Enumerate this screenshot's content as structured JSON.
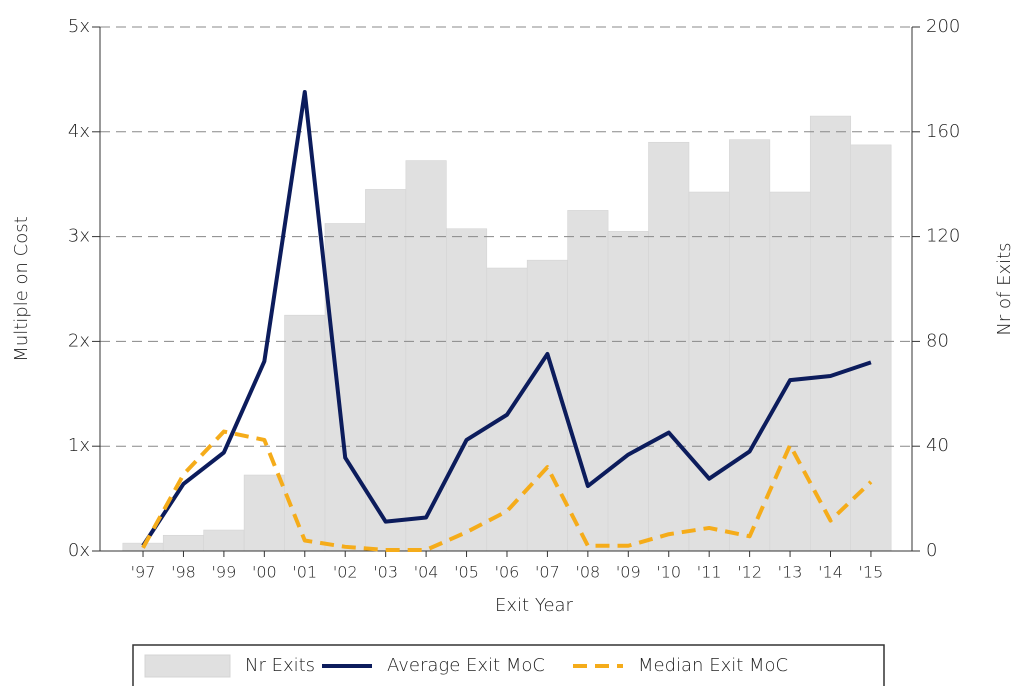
{
  "chart_data": {
    "type": "bar",
    "x_label": "Exit Year",
    "y_label": "Multiple on Cost",
    "y2_label": "Nr of Exits",
    "categories": [
      "'97",
      "'98",
      "'99",
      "'00",
      "'01",
      "'02",
      "'03",
      "'04",
      "'05",
      "'06",
      "'07",
      "'08",
      "'09",
      "'10",
      "'11",
      "'12",
      "'13",
      "'14",
      "'15"
    ],
    "series": [
      {
        "name": "Nr Exits",
        "type": "bar",
        "axis": "y2",
        "color": "#e0e0e0",
        "values": [
          3,
          6,
          8,
          29,
          90,
          125,
          138,
          149,
          123,
          108,
          111,
          130,
          122,
          156,
          137,
          157,
          137,
          166,
          155
        ]
      },
      {
        "name": "Average Exit MoC",
        "type": "line",
        "color": "#0c1c5c",
        "values": [
          0.05,
          0.64,
          0.94,
          1.81,
          4.38,
          0.89,
          0.28,
          0.32,
          1.06,
          1.3,
          1.88,
          0.62,
          0.92,
          1.13,
          0.69,
          0.95,
          1.63,
          1.67,
          1.8
        ]
      },
      {
        "name": "Median Exit MoC",
        "type": "line",
        "dashed": true,
        "color": "#f5ac1a",
        "values": [
          0.03,
          0.73,
          1.14,
          1.06,
          0.1,
          0.04,
          0.01,
          0.01,
          0.18,
          0.38,
          0.8,
          0.05,
          0.05,
          0.16,
          0.22,
          0.14,
          1.01,
          0.29,
          0.66
        ]
      }
    ],
    "ylim": [
      0,
      5
    ],
    "yticks": [
      {
        "value": 0,
        "label": "0x"
      },
      {
        "value": 1,
        "label": "1x"
      },
      {
        "value": 2,
        "label": "2x"
      },
      {
        "value": 3,
        "label": "3x"
      },
      {
        "value": 4,
        "label": "4x"
      },
      {
        "value": 5,
        "label": "5x"
      }
    ],
    "y2lim": [
      0,
      200
    ],
    "y2ticks": [
      0,
      40,
      80,
      120,
      160,
      200
    ],
    "grid": true,
    "legend": "bottom"
  }
}
